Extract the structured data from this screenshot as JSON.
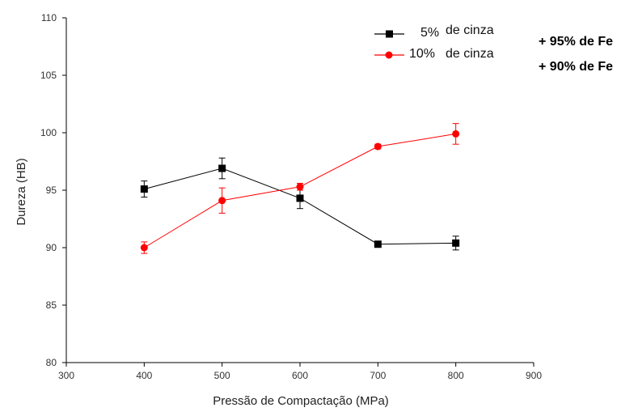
{
  "chart_data": {
    "type": "line",
    "title": "",
    "xlabel": "Pressão de Compactação (MPa)",
    "ylabel": "Dureza (HB)",
    "xlim": [
      300,
      900
    ],
    "ylim": [
      80,
      110
    ],
    "xticks": [
      300,
      400,
      500,
      600,
      700,
      800,
      900
    ],
    "yticks": [
      80,
      85,
      90,
      95,
      100,
      105,
      110
    ],
    "grid": false,
    "legend_position": "top-right",
    "series": [
      {
        "name_pct": "5%",
        "name_rest": "de cinza",
        "composition": "+ 95% de Fe",
        "color": "#000000",
        "marker": "square",
        "x": [
          400,
          500,
          600,
          700,
          800
        ],
        "y": [
          95.1,
          96.9,
          94.3,
          90.3,
          90.4
        ],
        "err": [
          0.7,
          0.9,
          0.9,
          0.2,
          0.6
        ]
      },
      {
        "name_pct": "10%",
        "name_rest": "de cinza",
        "composition": "+ 90% de Fe",
        "color": "#ff0000",
        "marker": "circle",
        "x": [
          400,
          500,
          600,
          700,
          800
        ],
        "y": [
          90.0,
          94.1,
          95.3,
          98.8,
          99.9
        ],
        "err": [
          0.5,
          1.1,
          0.3,
          0.2,
          0.9
        ]
      }
    ]
  }
}
